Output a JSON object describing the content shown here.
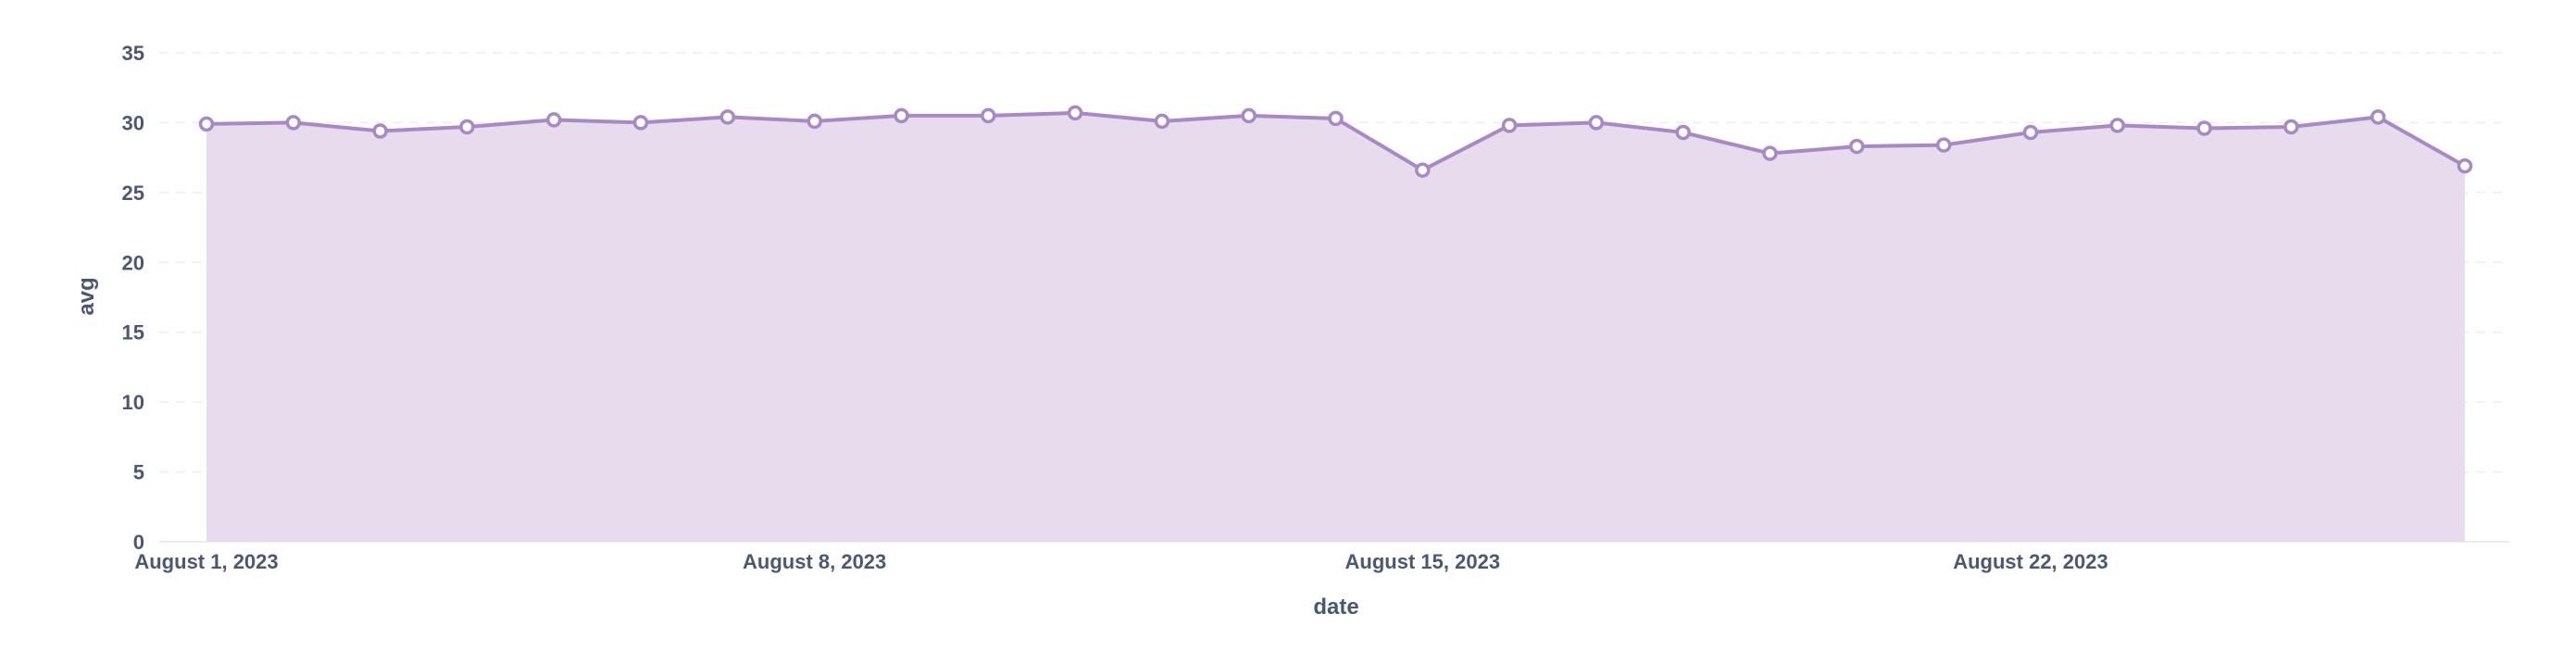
{
  "chart_data": {
    "type": "area",
    "xlabel": "date",
    "ylabel": "avg",
    "ylim": [
      0,
      35
    ],
    "y_ticks": [
      0,
      5,
      10,
      15,
      20,
      25,
      30,
      35
    ],
    "x_ticks": [
      {
        "date": "2023-08-01",
        "label": "August 1, 2023"
      },
      {
        "date": "2023-08-08",
        "label": "August 8, 2023"
      },
      {
        "date": "2023-08-15",
        "label": "August 15, 2023"
      },
      {
        "date": "2023-08-22",
        "label": "August 22, 2023"
      }
    ],
    "x_range": [
      "2023-08-01",
      "2023-08-27"
    ],
    "grid": true,
    "colors": {
      "line": "#a989c5",
      "fill": "#e7dbee",
      "marker_fill": "#ffffff"
    },
    "series": [
      {
        "x": [
          "2023-08-01",
          "2023-08-02",
          "2023-08-03",
          "2023-08-04",
          "2023-08-05",
          "2023-08-06",
          "2023-08-07",
          "2023-08-08",
          "2023-08-09",
          "2023-08-10",
          "2023-08-11",
          "2023-08-12",
          "2023-08-13",
          "2023-08-14",
          "2023-08-15",
          "2023-08-16",
          "2023-08-17",
          "2023-08-18",
          "2023-08-19",
          "2023-08-20",
          "2023-08-21",
          "2023-08-22",
          "2023-08-23",
          "2023-08-24",
          "2023-08-25",
          "2023-08-26",
          "2023-08-27"
        ],
        "values": [
          29.9,
          30.0,
          29.4,
          29.7,
          30.2,
          30.0,
          30.4,
          30.1,
          30.5,
          30.5,
          30.7,
          30.1,
          30.5,
          30.3,
          26.6,
          29.8,
          30.0,
          29.3,
          27.8,
          28.3,
          28.4,
          29.3,
          29.8,
          29.6,
          29.7,
          30.4,
          26.9
        ]
      }
    ]
  }
}
